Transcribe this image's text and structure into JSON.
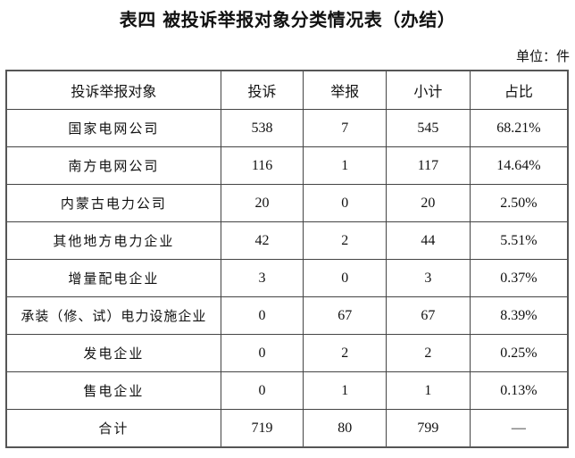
{
  "title": "表四  被投诉举报对象分类情况表（办结）",
  "unit": "单位：件",
  "table": {
    "headers": [
      "投诉举报对象",
      "投诉",
      "举报",
      "小计",
      "占比"
    ],
    "rows": [
      [
        "国家电网公司",
        "538",
        "7",
        "545",
        "68.21%"
      ],
      [
        "南方电网公司",
        "116",
        "1",
        "117",
        "14.64%"
      ],
      [
        "内蒙古电力公司",
        "20",
        "0",
        "20",
        "2.50%"
      ],
      [
        "其他地方电力企业",
        "42",
        "2",
        "44",
        "5.51%"
      ],
      [
        "增量配电企业",
        "3",
        "0",
        "3",
        "0.37%"
      ],
      [
        "承装（修、试）电力设施企业",
        "0",
        "67",
        "67",
        "8.39%"
      ],
      [
        "发电企业",
        "0",
        "2",
        "2",
        "0.25%"
      ],
      [
        "售电企业",
        "0",
        "1",
        "1",
        "0.13%"
      ],
      [
        "合计",
        "719",
        "80",
        "799",
        "—"
      ]
    ]
  }
}
